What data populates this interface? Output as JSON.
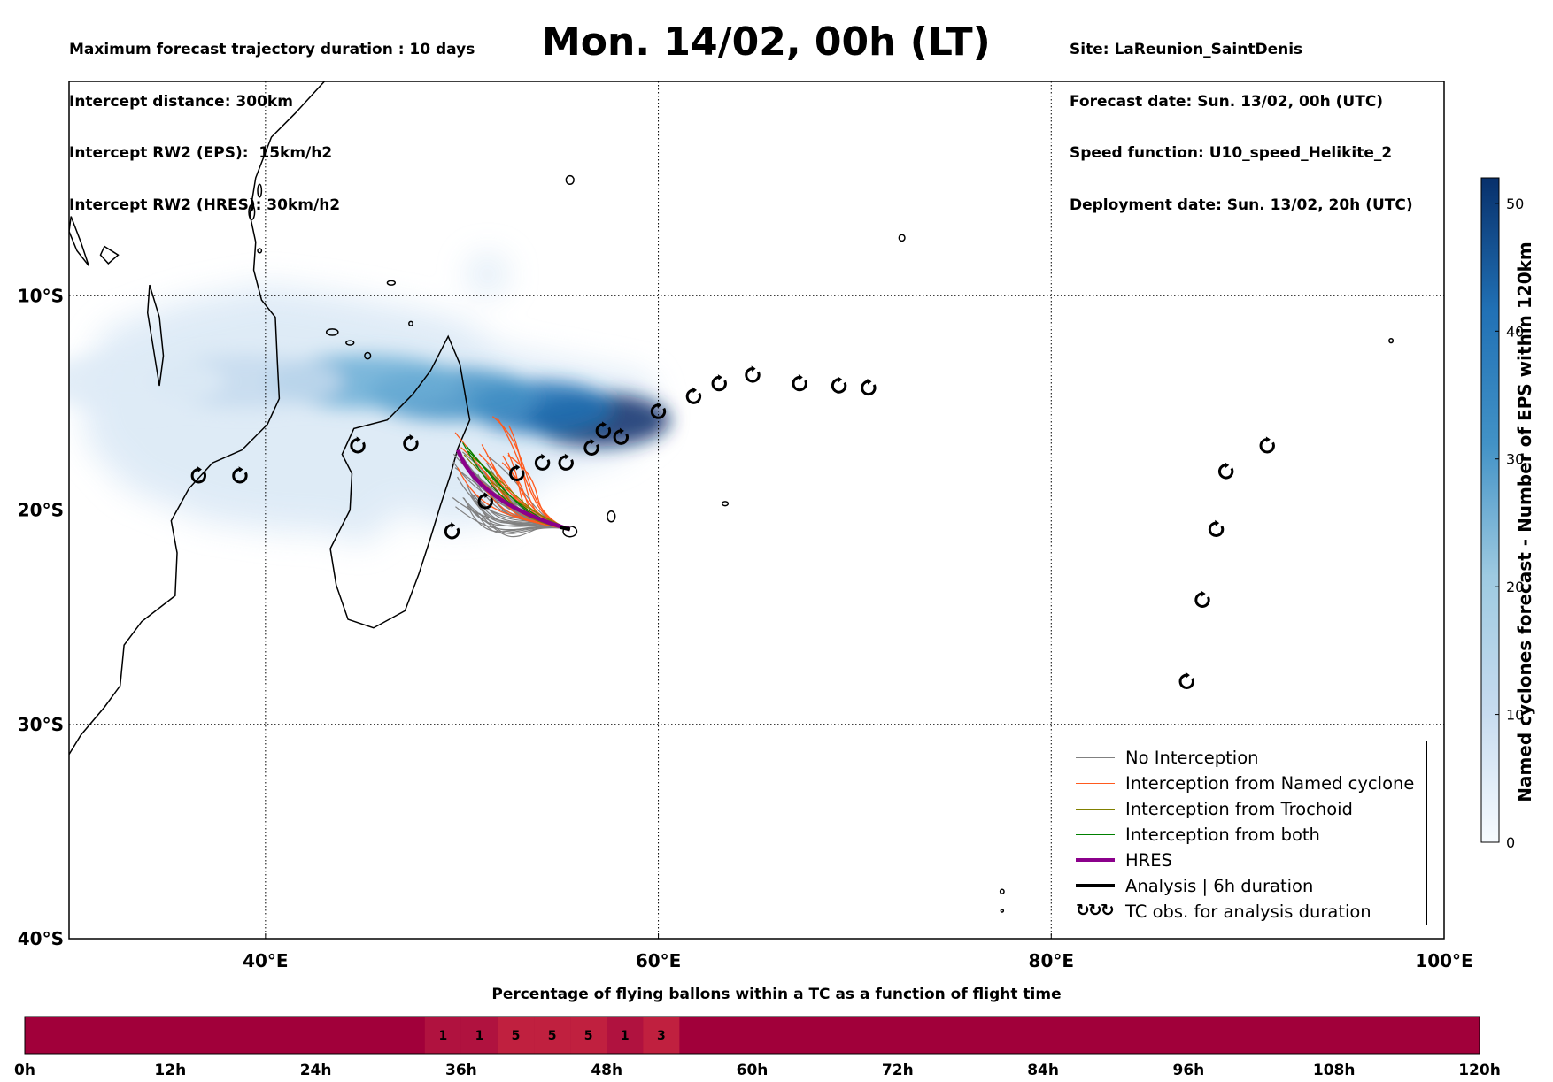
{
  "header_left": [
    "Maximum forecast trajectory duration : 10 days",
    "Intercept distance: 300km",
    "Intercept RW2 (EPS):  15km/h2",
    "Intercept RW2 (HRES): 30km/h2"
  ],
  "header_right": [
    "Site: LaReunion_SaintDenis",
    "Forecast date: Sun. 13/02, 00h (UTC)",
    "Speed function: U10_speed_Helikite_2",
    "Deployment date: Sun. 13/02, 20h (UTC)"
  ],
  "title": "Mon. 14/02, 00h (LT)",
  "colors": {
    "no_interception": "#808080",
    "named_cyclone": "#ff5a1e",
    "trochoid": "#808000",
    "both": "#008000",
    "hres": "#8b008b",
    "analysis": "#000000",
    "timeline_base": "#a1003a",
    "timeline_high": "#c0203f"
  },
  "chart_data": [
    {
      "type": "map",
      "xlim": [
        30,
        100
      ],
      "ylim": [
        -40,
        0
      ],
      "x_ticks": [
        40,
        60,
        80,
        100
      ],
      "x_tick_labels": [
        "40°E",
        "60°E",
        "80°E",
        "100°E"
      ],
      "y_ticks": [
        -10,
        -20,
        -30,
        -40
      ],
      "y_tick_labels": [
        "10°S",
        "20°S",
        "30°S",
        "40°S"
      ],
      "grid": true,
      "colorbar": {
        "label": "Named cyclones forecast - Number of EPS within 120km",
        "range": [
          0,
          52
        ],
        "ticks": [
          0,
          10,
          20,
          30,
          40,
          50
        ],
        "colormap": "Blues"
      },
      "deployment_site": {
        "lon": 55.5,
        "lat": -20.9
      },
      "tc_observations": [
        {
          "lon": 36.6,
          "lat": -18.4
        },
        {
          "lon": 38.7,
          "lat": -18.4
        },
        {
          "lon": 44.7,
          "lat": -17.0
        },
        {
          "lon": 47.4,
          "lat": -16.9
        },
        {
          "lon": 49.5,
          "lat": -21.0
        },
        {
          "lon": 51.2,
          "lat": -19.6
        },
        {
          "lon": 52.8,
          "lat": -18.3
        },
        {
          "lon": 54.1,
          "lat": -17.8
        },
        {
          "lon": 55.3,
          "lat": -17.8
        },
        {
          "lon": 56.6,
          "lat": -17.1
        },
        {
          "lon": 57.2,
          "lat": -16.3
        },
        {
          "lon": 58.1,
          "lat": -16.6
        },
        {
          "lon": 60.0,
          "lat": -15.4
        },
        {
          "lon": 61.8,
          "lat": -14.7
        },
        {
          "lon": 63.1,
          "lat": -14.1
        },
        {
          "lon": 64.8,
          "lat": -13.7
        },
        {
          "lon": 67.2,
          "lat": -14.1
        },
        {
          "lon": 69.2,
          "lat": -14.2
        },
        {
          "lon": 70.7,
          "lat": -14.3
        },
        {
          "lon": 91.0,
          "lat": -17.0
        },
        {
          "lon": 88.9,
          "lat": -18.2
        },
        {
          "lon": 88.4,
          "lat": -20.9
        },
        {
          "lon": 87.7,
          "lat": -24.2
        },
        {
          "lon": 86.9,
          "lat": -28.0
        }
      ],
      "density_blobs": [
        {
          "lon": 57.0,
          "lat": -15.8,
          "value": 52
        },
        {
          "lon": 54.0,
          "lat": -15.2,
          "value": 42
        },
        {
          "lon": 49.5,
          "lat": -14.6,
          "value": 34
        },
        {
          "lon": 45.0,
          "lat": -14.0,
          "value": 24
        },
        {
          "lon": 39.0,
          "lat": -14.0,
          "value": 12
        },
        {
          "lon": 33.0,
          "lat": -14.0,
          "value": 7
        }
      ],
      "legend": [
        {
          "key": "no_interception",
          "label": "No Interception"
        },
        {
          "key": "named_cyclone",
          "label": "Interception from Named cyclone"
        },
        {
          "key": "trochoid",
          "label": "Interception from Trochoid"
        },
        {
          "key": "both",
          "label": "Interception from both"
        },
        {
          "key": "hres",
          "label": "HRES"
        },
        {
          "key": "analysis",
          "label": "Analysis | 6h duration"
        },
        {
          "key": "tc_obs",
          "label": "TC obs. for analysis duration"
        }
      ],
      "trajectory_counts": {
        "no_interception": 34,
        "named_cyclone": 16,
        "trochoid": 3,
        "both": 3
      }
    },
    {
      "type": "heatmap",
      "title": "Percentage of flying ballons within a TC as a function of flight time",
      "xlim": [
        0,
        120
      ],
      "x_ticks": [
        0,
        12,
        24,
        36,
        48,
        60,
        72,
        84,
        96,
        108,
        120
      ],
      "x_tick_labels": [
        "0h",
        "12h",
        "24h",
        "36h",
        "48h",
        "60h",
        "72h",
        "84h",
        "96h",
        "108h",
        "120h"
      ],
      "bin_hours": 3,
      "cells": [
        {
          "start_h": 33,
          "value": "1"
        },
        {
          "start_h": 36,
          "value": "1"
        },
        {
          "start_h": 39,
          "value": "5"
        },
        {
          "start_h": 42,
          "value": "5"
        },
        {
          "start_h": 45,
          "value": "5"
        },
        {
          "start_h": 48,
          "value": "1"
        },
        {
          "start_h": 51,
          "value": "3"
        }
      ]
    }
  ]
}
